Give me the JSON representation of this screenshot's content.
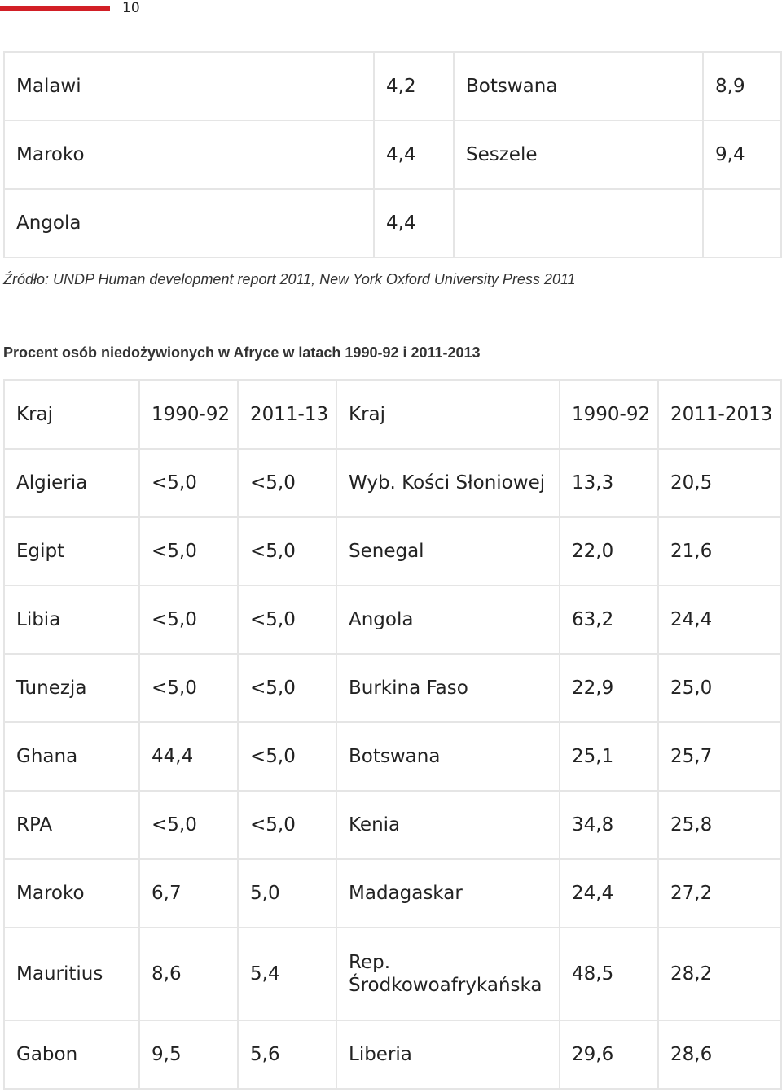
{
  "header": {
    "page_number": "10",
    "accent_color": "#d21f26"
  },
  "table1": {
    "rows": [
      [
        "Malawi",
        "4,2",
        "Botswana",
        "8,9"
      ],
      [
        "Maroko",
        "4,4",
        "Seszele",
        "9,4"
      ],
      [
        "Angola",
        "4,4",
        "",
        ""
      ]
    ]
  },
  "source_note": "Źródło: UNDP Human development report 2011, New York Oxford University Press 2011",
  "table2": {
    "caption": "Procent osób niedożywionych w Afryce w latach 1990-92 i 2011-2013",
    "header": [
      "Kraj",
      "1990-92",
      "2011-13",
      "Kraj",
      "1990-92",
      "2011-2013"
    ],
    "rows": [
      [
        "Algieria",
        "<5,0",
        "<5,0",
        "Wyb. Kości Słoniowej",
        "13,3",
        "20,5"
      ],
      [
        "Egipt",
        "<5,0",
        "<5,0",
        "Senegal",
        "22,0",
        "21,6"
      ],
      [
        "Libia",
        "<5,0",
        "<5,0",
        "Angola",
        "63,2",
        "24,4"
      ],
      [
        "Tunezja",
        "<5,0",
        "<5,0",
        "Burkina Faso",
        "22,9",
        "25,0"
      ],
      [
        "Ghana",
        "44,4",
        "<5,0",
        "Botswana",
        "25,1",
        "25,7"
      ],
      [
        "RPA",
        "<5,0",
        "<5,0",
        "Kenia",
        "34,8",
        "25,8"
      ],
      [
        "Maroko",
        "6,7",
        "5,0",
        "Madagaskar",
        "24,4",
        "27,2"
      ],
      [
        "Mauritius",
        "8,6",
        "5,4",
        "Rep. Środkowoafrykańska",
        "48,5",
        "28,2"
      ],
      [
        "Gabon",
        "9,5",
        "5,6",
        "Liberia",
        "29,6",
        "28,6"
      ]
    ]
  }
}
